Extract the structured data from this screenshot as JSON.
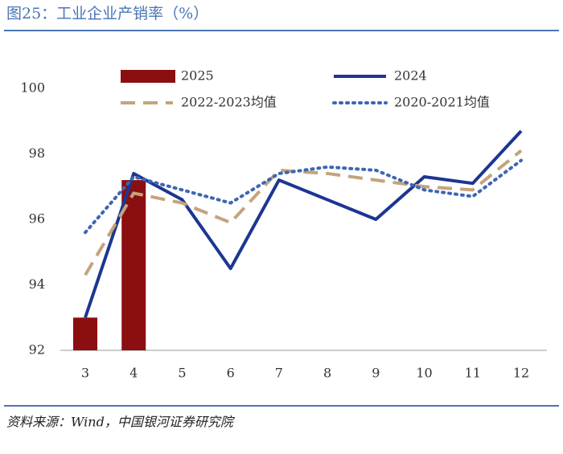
{
  "title": "图25：工业企业产销率（%）",
  "source": "资料来源：Wind，中国银河证券研究院",
  "chart_data": {
    "type": "combo",
    "categories": [
      "3",
      "4",
      "5",
      "6",
      "7",
      "8",
      "9",
      "10",
      "11",
      "12"
    ],
    "ylim": [
      92,
      100
    ],
    "yticks": [
      92,
      94,
      96,
      98,
      100
    ],
    "series": [
      {
        "name": "2025",
        "type": "bar",
        "color": "#8b0f10",
        "values": [
          93.0,
          97.2,
          null,
          null,
          null,
          null,
          null,
          null,
          null,
          null
        ]
      },
      {
        "name": "2024",
        "type": "line",
        "dash": "solid",
        "color": "#1c3691",
        "values": [
          93.0,
          97.4,
          96.6,
          94.5,
          97.2,
          96.6,
          96.0,
          97.3,
          97.1,
          98.7
        ]
      },
      {
        "name": "2022-2023均值",
        "type": "line",
        "dash": "dash",
        "color": "#c4a47c",
        "values": [
          94.3,
          96.8,
          96.5,
          95.9,
          97.5,
          97.4,
          97.2,
          97.0,
          96.9,
          98.1
        ]
      },
      {
        "name": "2020-2021均值",
        "type": "line",
        "dash": "dot",
        "color": "#3d66b3",
        "values": [
          95.6,
          97.3,
          96.9,
          96.5,
          97.4,
          97.6,
          97.5,
          96.9,
          96.7,
          97.8
        ]
      }
    ]
  }
}
